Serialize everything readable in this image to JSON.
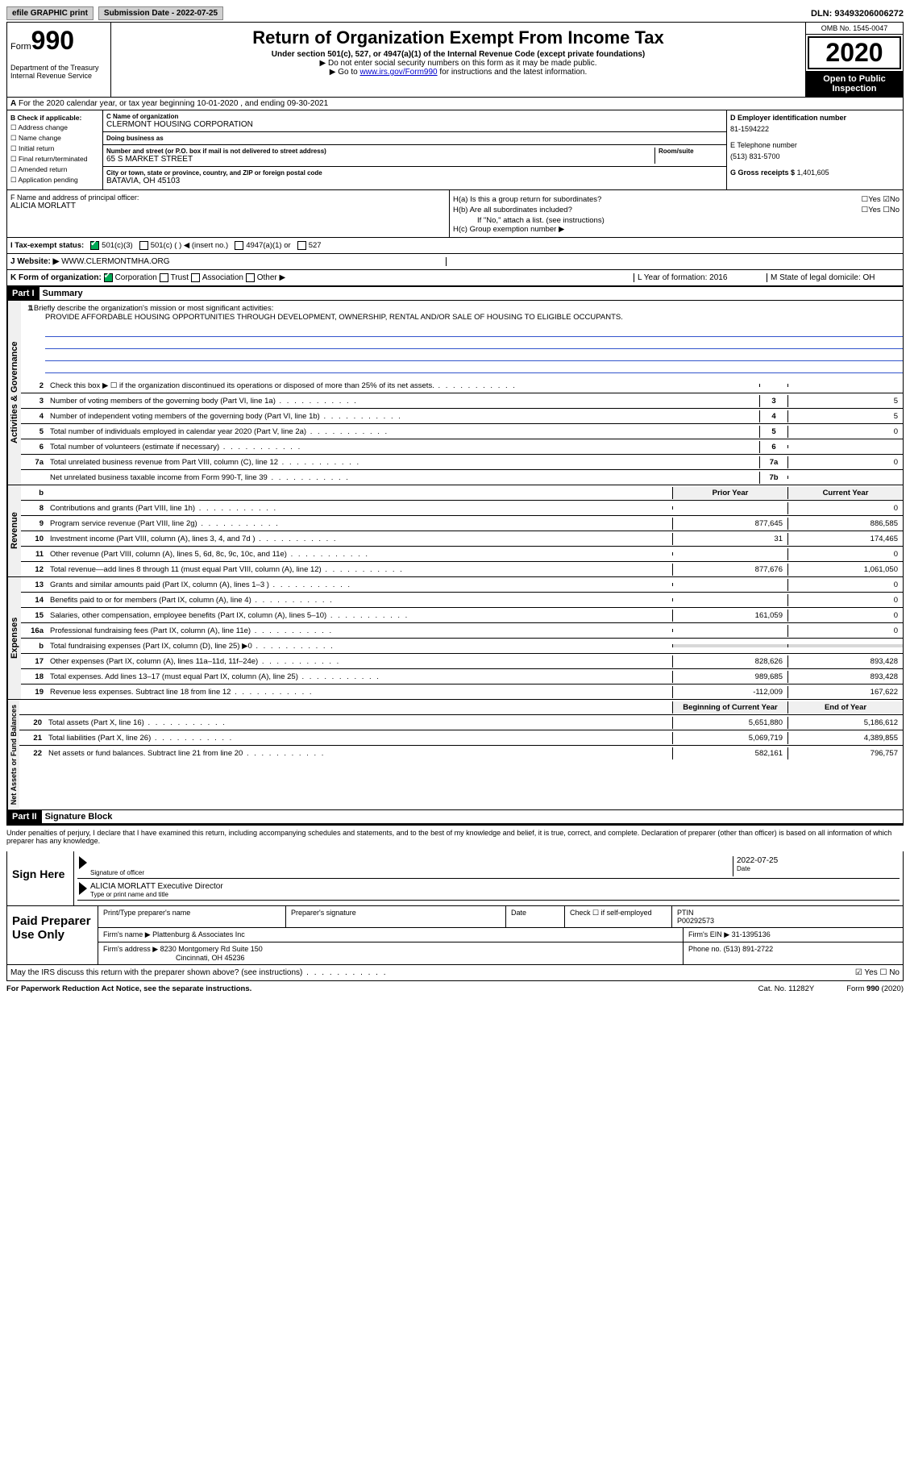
{
  "top": {
    "efile_btn": "efile GRAPHIC print",
    "submission_label": "Submission Date - 2022-07-25",
    "dln_label": "DLN: 93493206006272"
  },
  "header": {
    "form_label": "Form",
    "form_num": "990",
    "dept": "Department of the Treasury\nInternal Revenue Service",
    "title": "Return of Organization Exempt From Income Tax",
    "subtitle": "Under section 501(c), 527, or 4947(a)(1) of the Internal Revenue Code (except private foundations)",
    "note1": "▶ Do not enter social security numbers on this form as it may be made public.",
    "note2_pre": "▶ Go to ",
    "note2_link": "www.irs.gov/Form990",
    "note2_post": " for instructions and the latest information.",
    "omb": "OMB No. 1545-0047",
    "year": "2020",
    "open_public": "Open to Public Inspection"
  },
  "secA": "For the 2020 calendar year, or tax year beginning 10-01-2020   , and ending 09-30-2021",
  "boxB": {
    "label": "B Check if applicable:",
    "items": [
      "☐ Address change",
      "☐ Name change",
      "☐ Initial return",
      "☐ Final return/terminated",
      "☐ Amended return",
      "☐ Application pending"
    ]
  },
  "boxC": {
    "name_label": "C Name of organization",
    "name": "CLERMONT HOUSING CORPORATION",
    "dba_label": "Doing business as",
    "dba": "",
    "addr_label": "Number and street (or P.O. box if mail is not delivered to street address)",
    "room_label": "Room/suite",
    "addr": "65 S MARKET STREET",
    "city_label": "City or town, state or province, country, and ZIP or foreign postal code",
    "city": "BATAVIA, OH  45103"
  },
  "boxD": {
    "ein_label": "D Employer identification number",
    "ein": "81-1594222",
    "phone_label": "E Telephone number",
    "phone": "(513) 831-5700",
    "gross_label": "G Gross receipts $",
    "gross": "1,401,605"
  },
  "boxF": {
    "label": "F  Name and address of principal officer:",
    "name": "ALICIA MORLATT"
  },
  "boxH": {
    "ha": "H(a)  Is this a group return for subordinates?",
    "ha_ans": "☐Yes ☑No",
    "hb": "H(b)  Are all subordinates included?",
    "hb_ans": "☐Yes ☐No",
    "hb_note": "If \"No,\" attach a list. (see instructions)",
    "hc": "H(c)  Group exemption number ▶"
  },
  "taxI": {
    "label": "I  Tax-exempt status:",
    "o1": "501(c)(3)",
    "o2": "501(c) (  ) ◀ (insert no.)",
    "o3": "4947(a)(1) or",
    "o4": "527"
  },
  "rowJ": {
    "label": "J  Website: ▶",
    "val": "WWW.CLERMONTMHA.ORG"
  },
  "rowK": {
    "label": "K Form of organization:",
    "corp": "Corporation",
    "trust": "Trust",
    "assoc": "Association",
    "other": "Other ▶",
    "L": "L Year of formation: 2016",
    "M": "M State of legal domicile: OH"
  },
  "partI": {
    "tag": "Part I",
    "title": "Summary"
  },
  "mission": {
    "q": "1  Briefly describe the organization's mission or most significant activities:",
    "text": "PROVIDE AFFORDABLE HOUSING OPPORTUNITIES THROUGH DEVELOPMENT, OWNERSHIP, RENTAL AND/OR SALE OF HOUSING TO ELIGIBLE OCCUPANTS."
  },
  "govern": [
    {
      "n": "2",
      "t": "Check this box ▶ ☐  if the organization discontinued its operations or disposed of more than 25% of its net assets.",
      "ref": "",
      "v": ""
    },
    {
      "n": "3",
      "t": "Number of voting members of the governing body (Part VI, line 1a)",
      "ref": "3",
      "v": "5"
    },
    {
      "n": "4",
      "t": "Number of independent voting members of the governing body (Part VI, line 1b)",
      "ref": "4",
      "v": "5"
    },
    {
      "n": "5",
      "t": "Total number of individuals employed in calendar year 2020 (Part V, line 2a)",
      "ref": "5",
      "v": "0"
    },
    {
      "n": "6",
      "t": "Total number of volunteers (estimate if necessary)",
      "ref": "6",
      "v": ""
    },
    {
      "n": "7a",
      "t": "Total unrelated business revenue from Part VIII, column (C), line 12",
      "ref": "7a",
      "v": "0"
    },
    {
      "n": "",
      "t": "Net unrelated business taxable income from Form 990-T, line 39",
      "ref": "7b",
      "v": ""
    }
  ],
  "colHeaders": {
    "prior": "Prior Year",
    "current": "Current Year",
    "beg": "Beginning of Current Year",
    "end": "End of Year"
  },
  "revenue": [
    {
      "n": "8",
      "t": "Contributions and grants (Part VIII, line 1h)",
      "p": "",
      "c": "0"
    },
    {
      "n": "9",
      "t": "Program service revenue (Part VIII, line 2g)",
      "p": "877,645",
      "c": "886,585"
    },
    {
      "n": "10",
      "t": "Investment income (Part VIII, column (A), lines 3, 4, and 7d )",
      "p": "31",
      "c": "174,465"
    },
    {
      "n": "11",
      "t": "Other revenue (Part VIII, column (A), lines 5, 6d, 8c, 9c, 10c, and 11e)",
      "p": "",
      "c": "0"
    },
    {
      "n": "12",
      "t": "Total revenue—add lines 8 through 11 (must equal Part VIII, column (A), line 12)",
      "p": "877,676",
      "c": "1,061,050"
    }
  ],
  "expenses": [
    {
      "n": "13",
      "t": "Grants and similar amounts paid (Part IX, column (A), lines 1–3 )",
      "p": "",
      "c": "0"
    },
    {
      "n": "14",
      "t": "Benefits paid to or for members (Part IX, column (A), line 4)",
      "p": "",
      "c": "0"
    },
    {
      "n": "15",
      "t": "Salaries, other compensation, employee benefits (Part IX, column (A), lines 5–10)",
      "p": "161,059",
      "c": "0"
    },
    {
      "n": "16a",
      "t": "Professional fundraising fees (Part IX, column (A), line 11e)",
      "p": "",
      "c": "0"
    },
    {
      "n": "b",
      "t": "Total fundraising expenses (Part IX, column (D), line 25) ▶0",
      "p": "GREY",
      "c": "GREY"
    },
    {
      "n": "17",
      "t": "Other expenses (Part IX, column (A), lines 11a–11d, 11f–24e)",
      "p": "828,626",
      "c": "893,428"
    },
    {
      "n": "18",
      "t": "Total expenses. Add lines 13–17 (must equal Part IX, column (A), line 25)",
      "p": "989,685",
      "c": "893,428"
    },
    {
      "n": "19",
      "t": "Revenue less expenses. Subtract line 18 from line 12",
      "p": "-112,009",
      "c": "167,622"
    }
  ],
  "netassets": [
    {
      "n": "20",
      "t": "Total assets (Part X, line 16)",
      "p": "5,651,880",
      "c": "5,186,612"
    },
    {
      "n": "21",
      "t": "Total liabilities (Part X, line 26)",
      "p": "5,069,719",
      "c": "4,389,855"
    },
    {
      "n": "22",
      "t": "Net assets or fund balances. Subtract line 21 from line 20",
      "p": "582,161",
      "c": "796,757"
    }
  ],
  "partII": {
    "tag": "Part II",
    "title": "Signature Block"
  },
  "penalties": "Under penalties of perjury, I declare that I have examined this return, including accompanying schedules and statements, and to the best of my knowledge and belief, it is true, correct, and complete. Declaration of preparer (other than officer) is based on all information of which preparer has any knowledge.",
  "sign": {
    "label": "Sign Here",
    "sig_label": "Signature of officer",
    "date": "2022-07-25",
    "date_label": "Date",
    "name": "ALICIA MORLATT Executive Director",
    "name_label": "Type or print name and title"
  },
  "prep": {
    "label": "Paid Preparer Use Only",
    "h1": "Print/Type preparer's name",
    "h2": "Preparer's signature",
    "h3": "Date",
    "h4": "Check ☐ if self-employed",
    "h5": "PTIN",
    "ptin": "P00292573",
    "firm_label": "Firm's name   ▶",
    "firm": "Plattenburg & Associates Inc",
    "ein_label": "Firm's EIN ▶",
    "ein": "31-1395136",
    "addr_label": "Firm's address ▶",
    "addr": "8230 Montgomery Rd Suite 150",
    "addr2": "Cincinnati, OH  45236",
    "phone_label": "Phone no.",
    "phone": "(513) 891-2722"
  },
  "may": {
    "q": "May the IRS discuss this return with the preparer shown above? (see instructions)",
    "ans": "☑ Yes  ☐ No"
  },
  "footer": {
    "pra": "For Paperwork Reduction Act Notice, see the separate instructions.",
    "cat": "Cat. No. 11282Y",
    "form": "Form 990 (2020)"
  },
  "sideLabels": {
    "gov": "Activities & Governance",
    "rev": "Revenue",
    "exp": "Expenses",
    "net": "Net Assets or Fund Balances"
  }
}
